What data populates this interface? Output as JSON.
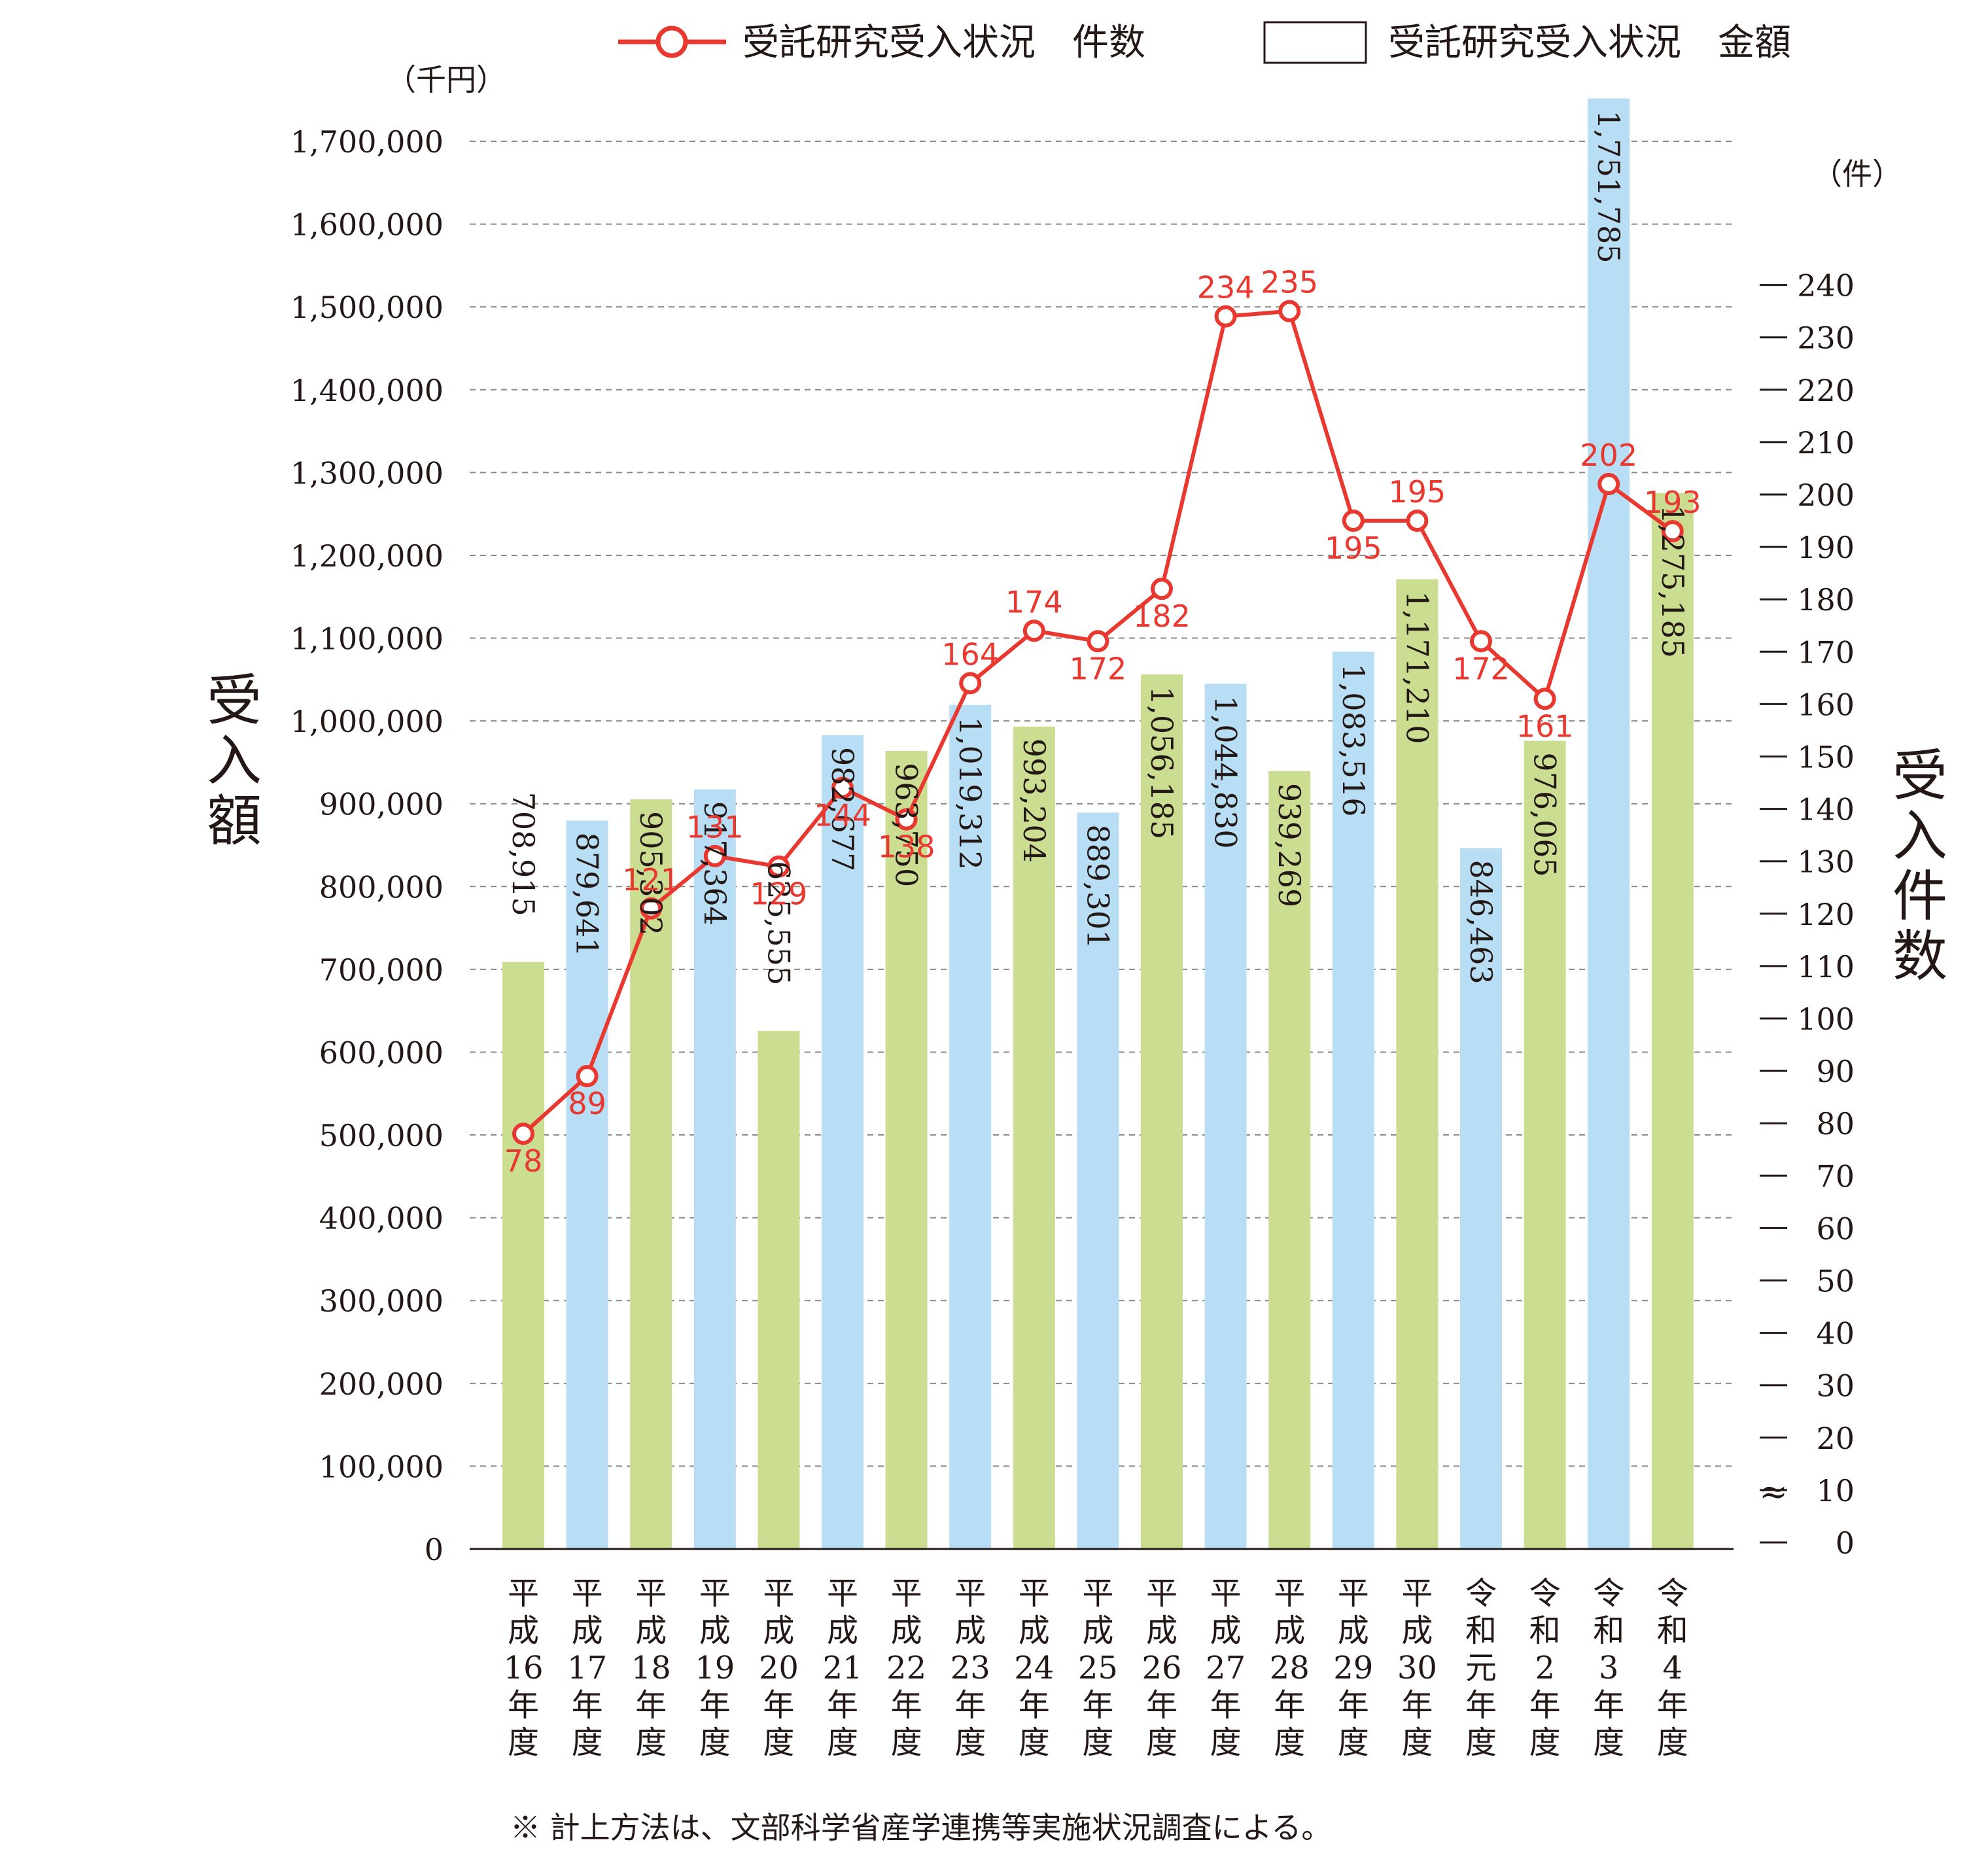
{
  "chart_data": {
    "type": "bar",
    "legend_position": "top-right",
    "grid": true,
    "categories": [
      "平成16年度",
      "平成17年度",
      "平成18年度",
      "平成19年度",
      "平成20年度",
      "平成21年度",
      "平成22年度",
      "平成23年度",
      "平成24年度",
      "平成25年度",
      "平成26年度",
      "平成27年度",
      "平成28年度",
      "平成29年度",
      "平成30年度",
      "令和元年度",
      "令和2年度",
      "令和3年度",
      "令和4年度"
    ],
    "category_lines": [
      [
        "平",
        "成",
        "16",
        "年",
        "度"
      ],
      [
        "平",
        "成",
        "17",
        "年",
        "度"
      ],
      [
        "平",
        "成",
        "18",
        "年",
        "度"
      ],
      [
        "平",
        "成",
        "19",
        "年",
        "度"
      ],
      [
        "平",
        "成",
        "20",
        "年",
        "度"
      ],
      [
        "平",
        "成",
        "21",
        "年",
        "度"
      ],
      [
        "平",
        "成",
        "22",
        "年",
        "度"
      ],
      [
        "平",
        "成",
        "23",
        "年",
        "度"
      ],
      [
        "平",
        "成",
        "24",
        "年",
        "度"
      ],
      [
        "平",
        "成",
        "25",
        "年",
        "度"
      ],
      [
        "平",
        "成",
        "26",
        "年",
        "度"
      ],
      [
        "平",
        "成",
        "27",
        "年",
        "度"
      ],
      [
        "平",
        "成",
        "28",
        "年",
        "度"
      ],
      [
        "平",
        "成",
        "29",
        "年",
        "度"
      ],
      [
        "平",
        "成",
        "30",
        "年",
        "度"
      ],
      [
        "令",
        "和",
        "元",
        "年",
        "度"
      ],
      [
        "令",
        "和",
        "2",
        "年",
        "度"
      ],
      [
        "令",
        "和",
        "3",
        "年",
        "度"
      ],
      [
        "令",
        "和",
        "4",
        "年",
        "度"
      ]
    ],
    "series": [
      {
        "name": "受託研究受入状況　金額",
        "type": "bar",
        "axis": "left",
        "values": [
          708915,
          879641,
          905302,
          917364,
          625555,
          982677,
          963750,
          1019312,
          993204,
          889301,
          1056185,
          1044830,
          939269,
          1083516,
          1171210,
          846463,
          976065,
          1751785,
          1275185
        ],
        "labels": [
          "708,915",
          "879,641",
          "905,302",
          "917,364",
          "625,555",
          "982,677",
          "963,750",
          "1,019,312",
          "993,204",
          "889,301",
          "1,056,185",
          "1,044,830",
          "939,269",
          "1,083,516",
          "1,171,210",
          "846,463",
          "976,065",
          "1,751,785",
          "1,275,185"
        ],
        "colors": [
          "#cadd91",
          "#b7def5",
          "#cadd91",
          "#b7def5",
          "#cadd91",
          "#b7def5",
          "#cadd91",
          "#b7def5",
          "#cadd91",
          "#b7def5",
          "#cadd91",
          "#b7def5",
          "#cadd91",
          "#b7def5",
          "#cadd91",
          "#b7def5",
          "#cadd91",
          "#b7def5",
          "#cadd91"
        ]
      },
      {
        "name": "受託研究受入状況　件数",
        "type": "line",
        "axis": "right",
        "color": "#e8382f",
        "values": [
          78,
          89,
          121,
          131,
          129,
          144,
          138,
          164,
          174,
          172,
          182,
          234,
          235,
          195,
          195,
          172,
          161,
          202,
          193
        ],
        "labels": [
          "78",
          "89",
          "121",
          "131",
          "129",
          "144",
          "138",
          "164",
          "174",
          "172",
          "182",
          "234",
          "235",
          "195",
          "195",
          "172",
          "161",
          "202",
          "193"
        ]
      }
    ],
    "ylabel": "受入額",
    "ylabel2": "受入件数",
    "yunit": "（千円）",
    "yunit2": "（件）",
    "ylim": [
      0,
      1700000
    ],
    "yticks": [
      0,
      100000,
      200000,
      300000,
      400000,
      500000,
      600000,
      700000,
      800000,
      900000,
      1000000,
      1100000,
      1200000,
      1300000,
      1400000,
      1500000,
      1600000,
      1700000
    ],
    "ytick_labels": [
      "0",
      "100,000",
      "200,000",
      "300,000",
      "400,000",
      "500,000",
      "600,000",
      "700,000",
      "800,000",
      "900,000",
      "1,000,000",
      "1,100,000",
      "1,200,000",
      "1,300,000",
      "1,400,000",
      "1,500,000",
      "1,600,000",
      "1,700,000"
    ],
    "y2ticks": [
      0,
      10,
      20,
      30,
      40,
      50,
      60,
      70,
      80,
      90,
      100,
      110,
      120,
      130,
      140,
      150,
      160,
      170,
      180,
      190,
      200,
      210,
      220,
      230,
      240
    ],
    "y2tick_labels": [
      "0",
      "10",
      "20",
      "30",
      "40",
      "50",
      "60",
      "70",
      "80",
      "90",
      "100",
      "110",
      "120",
      "130",
      "140",
      "150",
      "160",
      "170",
      "180",
      "190",
      "200",
      "210",
      "220",
      "230",
      "240"
    ],
    "y2_break_symbol": "≈",
    "note": "※ 計上方法は、文部科学省産学連携等実施状況調査による。"
  }
}
